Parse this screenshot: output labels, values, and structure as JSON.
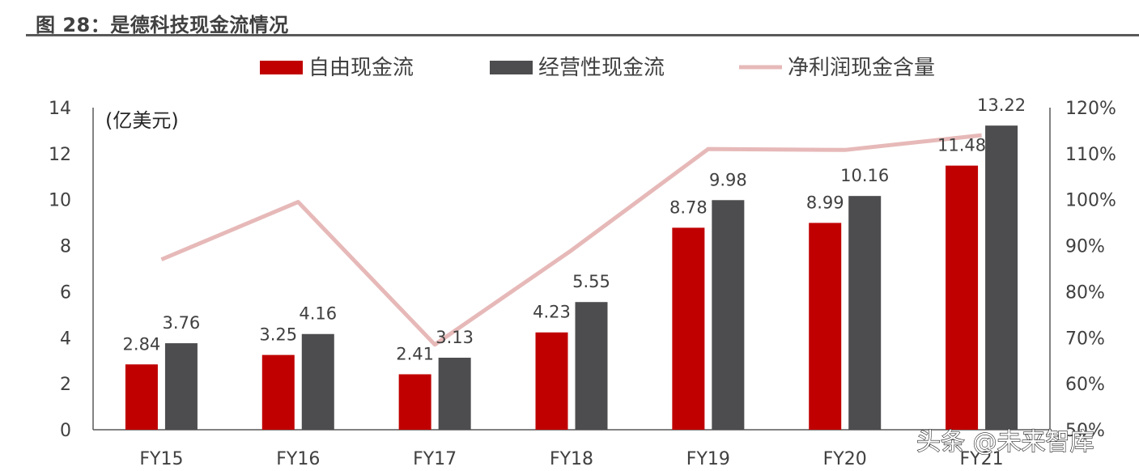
{
  "figure": {
    "title": "图 28：是德科技现金流情况"
  },
  "watermark": "头条 @未来智库",
  "chart_data": {
    "type": "bar",
    "unit_label": "(亿美元)",
    "categories": [
      "FY15",
      "FY16",
      "FY17",
      "FY18",
      "FY19",
      "FY20",
      "FY21"
    ],
    "series": [
      {
        "name": "自由现金流",
        "kind": "bar",
        "axis": "left",
        "color": "#C00000",
        "values": [
          2.84,
          3.25,
          2.41,
          4.23,
          8.78,
          8.99,
          11.48
        ],
        "labels": [
          "2.84",
          "3.25",
          "2.41",
          "4.23",
          "8.78",
          "8.99",
          "11.48"
        ]
      },
      {
        "name": "经营性现金流",
        "kind": "bar",
        "axis": "left",
        "color": "#4D4D4F",
        "values": [
          3.76,
          4.16,
          3.13,
          5.55,
          9.98,
          10.16,
          13.22
        ],
        "labels": [
          "3.76",
          "4.16",
          "3.13",
          "5.55",
          "9.98",
          "10.16",
          "13.22"
        ]
      },
      {
        "name": "净利润现金含量",
        "kind": "line",
        "axis": "right",
        "color": "#E6B9B8",
        "values": [
          87,
          99.5,
          68.5,
          89,
          111,
          110.8,
          114
        ]
      }
    ],
    "y_left": {
      "min": 0,
      "max": 14,
      "step": 2,
      "ticks": [
        "0",
        "2",
        "4",
        "6",
        "8",
        "10",
        "12",
        "14"
      ]
    },
    "y_right": {
      "min": 50,
      "max": 120,
      "step": 10,
      "ticks": [
        "50%",
        "60%",
        "70%",
        "80%",
        "90%",
        "100%",
        "110%",
        "120%"
      ]
    },
    "legend": "top",
    "grid": false
  }
}
